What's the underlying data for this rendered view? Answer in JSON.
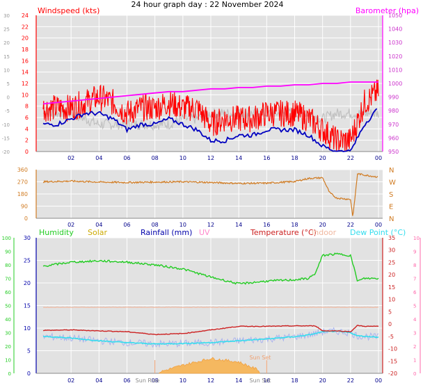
{
  "title": "24 hour graph day : 22 November 2024",
  "colors": {
    "wind": "#ff0000",
    "gust_dark": "#0000c0",
    "gust_light": "#c0c0c0",
    "baro": "#ff00ff",
    "direction": "#d07a20",
    "humidity": "#22cc22",
    "solar": "#ccaa00",
    "rainfall": "#0000aa",
    "uv": "#ff88cc",
    "temperature": "#cc2020",
    "indoor": "#f0b8a0",
    "dewpoint": "#33ddee",
    "grid": "#ffffff",
    "plot_bg": "#e2e2e2"
  },
  "panels": {
    "wind": {
      "label": "Windspeed (kts)",
      "label_right": "Barometer (hpa)",
      "y_left_ticks": [
        "24",
        "22",
        "20",
        "18",
        "16",
        "14",
        "12",
        "10",
        "8",
        "6",
        "4",
        "2",
        "0"
      ],
      "y_far_left_ticks": [
        "30",
        "25",
        "20",
        "15",
        "10",
        "5",
        "0",
        "-5",
        "-10",
        "-15",
        "-20"
      ],
      "y_right_ticks": [
        "1050",
        "1040",
        "1030",
        "1020",
        "1010",
        "1000",
        "990",
        "980",
        "970",
        "960",
        "950"
      ]
    },
    "direction": {
      "y_left_ticks": [
        "360",
        "270",
        "180",
        "90",
        "0"
      ],
      "y_right_ticks": [
        "N",
        "W",
        "S",
        "E",
        "N"
      ]
    },
    "multi": {
      "legend": {
        "humidity": "Humidity",
        "solar": "Solar",
        "rainfall": "Rainfall (mm)",
        "uv": "UV",
        "temperature": "Temperature (°C)",
        "indoor": "Indoor",
        "dewpoint": "Dew Point (°C)"
      },
      "y_far_left_ticks": [
        "100",
        "90",
        "80",
        "70",
        "60",
        "50",
        "40",
        "30",
        "20",
        "10",
        "0"
      ],
      "y_left_ticks": [
        "30",
        "25",
        "20",
        "15",
        "10",
        "5",
        "0"
      ],
      "y_right_ticks": [
        "35",
        "30",
        "25",
        "20",
        "15",
        "10",
        "5",
        "0",
        "-5",
        "-10",
        "-15",
        "-20"
      ],
      "y_far_right_ticks": [
        "10",
        "9",
        "8",
        "7",
        "6",
        "5",
        "4",
        "3",
        "2",
        "1",
        "0"
      ],
      "sun_rise": "Sun Rise",
      "sun_set": "Sun Set"
    }
  },
  "x_ticks": [
    "02",
    "04",
    "06",
    "08",
    "10",
    "12",
    "14",
    "16",
    "18",
    "20",
    "22",
    "00"
  ],
  "chart_data": [
    {
      "type": "line",
      "title": "Windspeed (kts)",
      "x": [
        "00:00",
        "01:00",
        "02:00",
        "03:00",
        "04:00",
        "05:00",
        "06:00",
        "07:00",
        "08:00",
        "09:00",
        "10:00",
        "11:00",
        "12:00",
        "13:00",
        "14:00",
        "15:00",
        "16:00",
        "17:00",
        "18:00",
        "19:00",
        "20:00",
        "21:00",
        "22:00",
        "23:00",
        "00:00"
      ],
      "series": [
        {
          "name": "Windspeed (kts)",
          "values": [
            8,
            8,
            8,
            9,
            10,
            9,
            7,
            8,
            8,
            9,
            8,
            8,
            5,
            6,
            6,
            6,
            7,
            7,
            7,
            6,
            4,
            2,
            2,
            9,
            11
          ]
        },
        {
          "name": "gust",
          "values": [
            5,
            5,
            6,
            7,
            7,
            6,
            4,
            5,
            5,
            6,
            5,
            4,
            2,
            2,
            3,
            3,
            4,
            4,
            4,
            3,
            1,
            0,
            0,
            5,
            8
          ]
        },
        {
          "name": "avg",
          "values": [
            7,
            7,
            7,
            6,
            5,
            5,
            5,
            5,
            5,
            5,
            6,
            6,
            7,
            7,
            7,
            7,
            7,
            7,
            7,
            7,
            6,
            7,
            7,
            7,
            7
          ]
        },
        {
          "name": "Barometer (hpa)",
          "values": [
            985,
            986,
            987,
            988,
            989,
            990,
            991,
            992,
            993,
            994,
            994,
            995,
            996,
            996,
            997,
            997,
            998,
            998,
            999,
            999,
            1000,
            1000,
            1001,
            1001,
            1001
          ]
        }
      ],
      "ylim": [
        0,
        25
      ],
      "ylim_right": [
        950,
        1050
      ]
    },
    {
      "type": "line",
      "x": [
        "00:00",
        "02:00",
        "04:00",
        "06:00",
        "08:00",
        "10:00",
        "12:00",
        "14:00",
        "16:00",
        "18:00",
        "19:00",
        "20:00",
        "20:30",
        "21:00",
        "22:00",
        "22:10",
        "22:30",
        "23:00",
        "00:00"
      ],
      "series": [
        {
          "name": "direction",
          "values": [
            270,
            275,
            268,
            265,
            268,
            270,
            265,
            258,
            260,
            272,
            295,
            300,
            190,
            150,
            140,
            10,
            330,
            320,
            305
          ]
        }
      ],
      "ylim": [
        0,
        360
      ]
    },
    {
      "type": "line",
      "x": [
        "00:00",
        "02:00",
        "04:00",
        "06:00",
        "08:00",
        "10:00",
        "12:00",
        "14:00",
        "16:00",
        "18:00",
        "19:00",
        "19:30",
        "20:00",
        "21:00",
        "22:00",
        "22:30",
        "23:00",
        "00:00"
      ],
      "series": [
        {
          "name": "Humidity",
          "values": [
            79,
            82,
            83,
            82,
            80,
            77,
            71,
            66,
            68,
            69,
            70,
            74,
            87,
            88,
            87,
            68,
            70,
            70
          ]
        },
        {
          "name": "Temperature (°C)",
          "values": [
            9.5,
            9.6,
            9.4,
            9.2,
            8.6,
            8.8,
            9.6,
            10.4,
            10.4,
            10.5,
            10.5,
            10.5,
            9.4,
            9.4,
            9.2,
            10.6,
            10.4,
            10.4
          ]
        },
        {
          "name": "Dew Point (°C)",
          "values": [
            8.2,
            7.8,
            7.2,
            6.8,
            6.5,
            6.6,
            6.8,
            7.2,
            7.6,
            8.1,
            8.5,
            8.8,
            9.2,
            9.3,
            9.0,
            8.3,
            8.2,
            8.0
          ]
        },
        {
          "name": "Indoor",
          "values": [
            14.6,
            14.6,
            14.6,
            14.6,
            14.6,
            14.6,
            14.6,
            14.6,
            14.6,
            14.6,
            14.6,
            14.6,
            14.6,
            14.6,
            14.6,
            14.6,
            14.6,
            14.6
          ]
        },
        {
          "name": "Solar",
          "values": [
            0,
            0,
            0,
            0,
            0,
            1.8,
            3.3,
            2.5,
            0,
            0,
            0,
            0,
            0,
            0,
            0,
            0,
            0,
            0
          ]
        }
      ],
      "ylim": [
        0,
        30
      ]
    }
  ]
}
